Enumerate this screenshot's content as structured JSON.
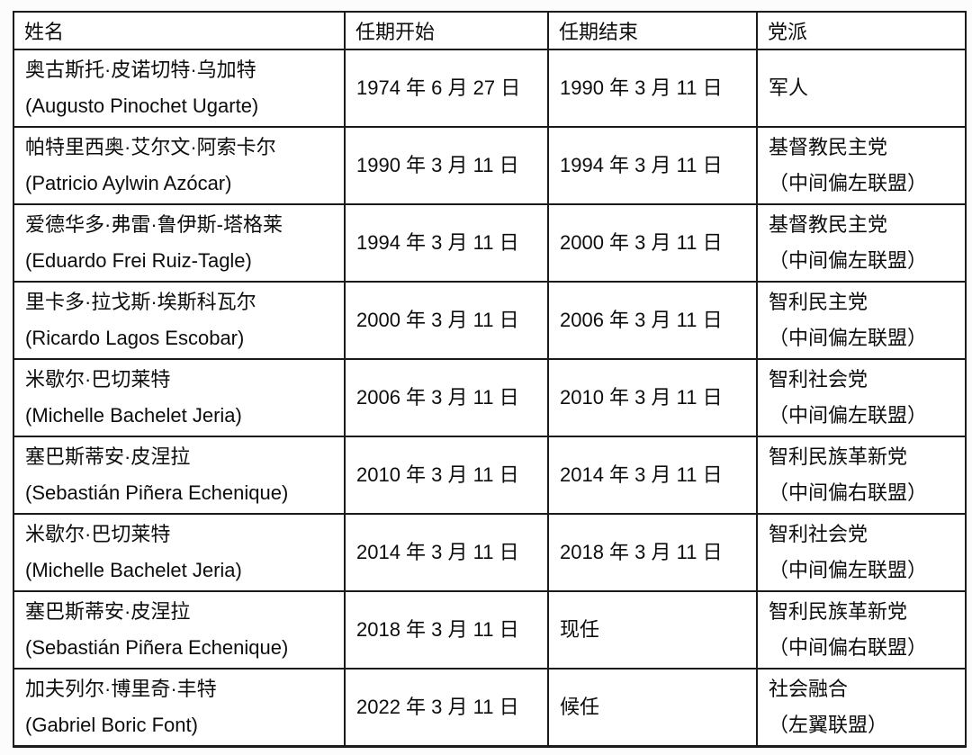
{
  "table": {
    "headers": [
      "姓名",
      "任期开始",
      "任期结束",
      "党派"
    ],
    "rows": [
      {
        "name_zh": "奥古斯托·皮诺切特·乌加特",
        "name_latin": "(Augusto Pinochet Ugarte)",
        "term_start": "1974 年 6 月 27 日",
        "term_end": "1990 年 3 月 11 日",
        "party": "军人",
        "coalition": ""
      },
      {
        "name_zh": "帕特里西奥·艾尔文·阿索卡尔",
        "name_latin": "(Patricio Aylwin Azócar)",
        "term_start": "1990 年 3 月 11 日",
        "term_end": "1994 年 3 月 11 日",
        "party": "基督教民主党",
        "coalition": "（中间偏左联盟）"
      },
      {
        "name_zh": "爱德华多·弗雷·鲁伊斯-塔格莱",
        "name_latin": "(Eduardo Frei Ruiz-Tagle)",
        "term_start": "1994 年 3 月 11 日",
        "term_end": "2000 年 3 月 11 日",
        "party": "基督教民主党",
        "coalition": "（中间偏左联盟）"
      },
      {
        "name_zh": "里卡多·拉戈斯·埃斯科瓦尔",
        "name_latin": "(Ricardo Lagos Escobar)",
        "term_start": "2000 年 3 月 11 日",
        "term_end": "2006 年 3 月 11 日",
        "party": "智利民主党",
        "coalition": "（中间偏左联盟）"
      },
      {
        "name_zh": "米歇尔·巴切莱特",
        "name_latin": "(Michelle Bachelet Jeria)",
        "term_start": "2006 年 3 月 11 日",
        "term_end": "2010 年 3 月 11 日",
        "party": "智利社会党",
        "coalition": "（中间偏左联盟）"
      },
      {
        "name_zh": "塞巴斯蒂安·皮涅拉",
        "name_latin": "(Sebastián Piñera Echenique)",
        "term_start": "2010 年 3 月 11 日",
        "term_end": "2014 年 3 月 11 日",
        "party": "智利民族革新党",
        "coalition": "（中间偏右联盟）"
      },
      {
        "name_zh": "米歇尔·巴切莱特",
        "name_latin": "(Michelle Bachelet Jeria)",
        "term_start": "2014 年 3 月 11 日",
        "term_end": "2018 年 3 月 11 日",
        "party": "智利社会党",
        "coalition": "（中间偏左联盟）"
      },
      {
        "name_zh": "塞巴斯蒂安·皮涅拉",
        "name_latin": "(Sebastián Piñera Echenique)",
        "term_start": "2018 年 3 月 11 日",
        "term_end": "现任",
        "party": "智利民族革新党",
        "coalition": "（中间偏右联盟）"
      },
      {
        "name_zh": "加夫列尔·博里奇·丰特",
        "name_latin": "(Gabriel Boric Font)",
        "term_start": "2022 年 3 月 11 日",
        "term_end": "候任",
        "party": "社会融合",
        "coalition": "（左翼联盟）"
      }
    ]
  },
  "colors": {
    "border": "#1a1a1a",
    "text": "#0d0d0d",
    "table_background": "#ffffff",
    "page_background": "#fcfcfc"
  }
}
